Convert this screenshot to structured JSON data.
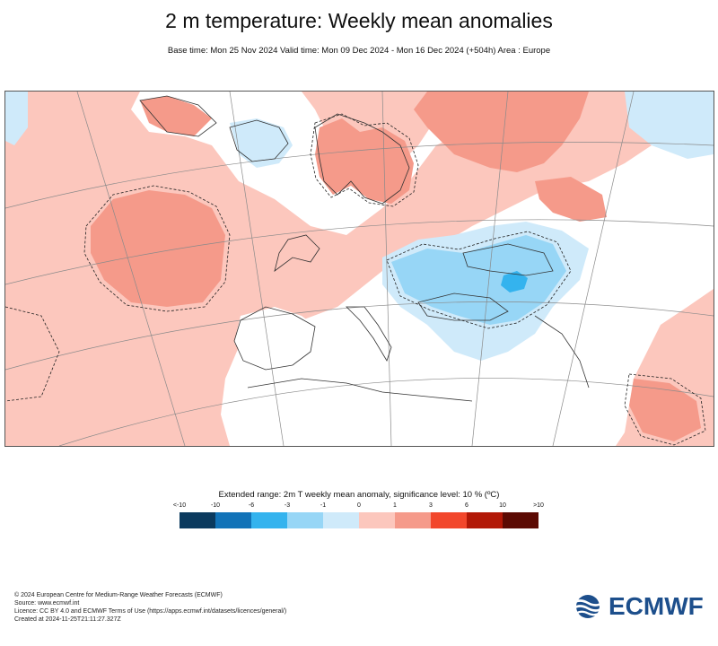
{
  "title": "2 m temperature: Weekly mean anomalies",
  "subtitle": "Base time: Mon 25 Nov 2024 Valid time: Mon 09 Dec 2024 - Mon 16 Dec 2024 (+504h) Area : Europe",
  "legend": {
    "title": "Extended range: 2m T weekly mean anomaly, significance level: 10 % (ºC)",
    "ticks": [
      "<-10",
      "-10",
      "-6",
      "-3",
      "-1",
      "0",
      "1",
      "3",
      "6",
      "10",
      ">10"
    ],
    "colors": [
      "#0b3a5e",
      "#1273b8",
      "#34b3ee",
      "#97d6f6",
      "#cfeafa",
      "#ffffff",
      "#fcc7bd",
      "#f59a8a",
      "#f2472c",
      "#b21807",
      "#5c0a03"
    ]
  },
  "footer": {
    "line1": "© 2024 European Centre for Medium-Range Weather Forecasts (ECMWF)",
    "line2": "Source: www.ecmwf.int",
    "line3": "Licence: CC BY 4.0 and ECMWF Terms of Use (https://apps.ecmwf.int/datasets/licences/general/)",
    "line4": "Created at 2024-11-25T21:11:27.327Z"
  },
  "logo": {
    "text": "ECMWF",
    "color": "#1d4f8c"
  },
  "map": {
    "colors": {
      "pale_red": "#fcc7bd",
      "red": "#f59a8a",
      "pale_blue": "#cfeafa",
      "blue": "#97d6f6",
      "mid_blue": "#34b3ee"
    }
  }
}
